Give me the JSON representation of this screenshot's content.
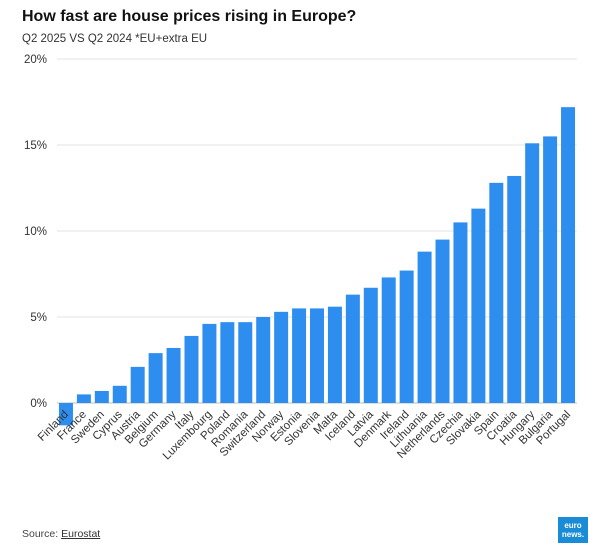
{
  "title": "How fast are house prices rising in Europe?",
  "subtitle": "Q2 2025 VS Q2 2024 *EU+extra EU",
  "footer": {
    "source_label": "Source:",
    "source_link": "Eurostat"
  },
  "logo": {
    "line1": "euro",
    "line2": "news."
  },
  "colors": {
    "bar": "#2e8ef0",
    "grid": "#e3e3e3",
    "zero_line": "#bdbdbd"
  },
  "chart_data": {
    "type": "bar",
    "categories": [
      "Finland",
      "France",
      "Sweden",
      "Cyprus",
      "Austria",
      "Belgium",
      "Germany",
      "Italy",
      "Luxembourg",
      "Poland",
      "Romania",
      "Switzerland",
      "Norway",
      "Estonia",
      "Slovenia",
      "Malta",
      "Iceland",
      "Latvia",
      "Denmark",
      "Ireland",
      "Lithuania",
      "Netherlands",
      "Czechia",
      "Slovakia",
      "Spain",
      "Croatia",
      "Hungary",
      "Bulgaria",
      "Portugal"
    ],
    "values": [
      -1.3,
      0.5,
      0.7,
      1.0,
      2.1,
      2.9,
      3.2,
      3.9,
      4.6,
      4.7,
      4.7,
      5.0,
      5.3,
      5.5,
      5.5,
      5.6,
      6.3,
      6.7,
      7.3,
      7.7,
      8.8,
      9.5,
      10.5,
      11.3,
      12.8,
      13.2,
      15.1,
      15.5,
      17.2
    ],
    "ylim": [
      -1.3,
      20
    ],
    "yticks": [
      0,
      5,
      10,
      15,
      20
    ],
    "ytick_labels": [
      "0%",
      "5%",
      "10%",
      "15%",
      "20%"
    ],
    "grid": true,
    "xlabel": "",
    "ylabel": ""
  }
}
